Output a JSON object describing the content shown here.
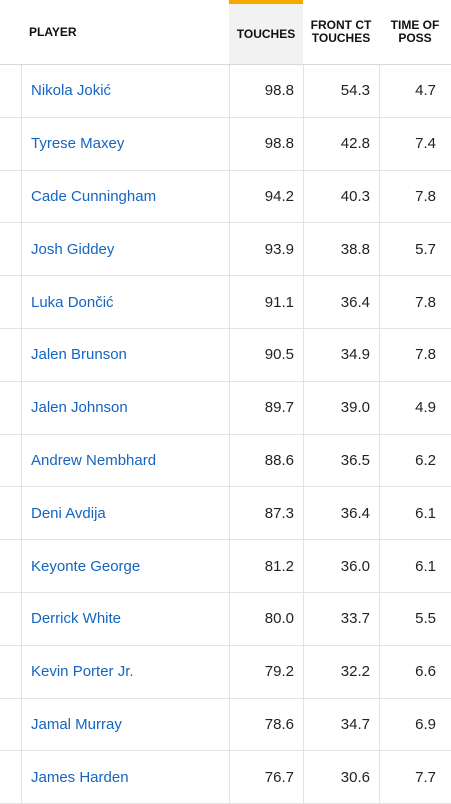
{
  "columns": {
    "player": "PLAYER",
    "touches": "TOUCHES",
    "front_ct_touches": "FRONT CT TOUCHES",
    "time_of_poss": "TIME OF POSS"
  },
  "rows": [
    {
      "player": "Nikola Jokić",
      "touches": "98.8",
      "front": "54.3",
      "time": "4.7"
    },
    {
      "player": "Tyrese Maxey",
      "touches": "98.8",
      "front": "42.8",
      "time": "7.4"
    },
    {
      "player": "Cade Cunningham",
      "touches": "94.2",
      "front": "40.3",
      "time": "7.8"
    },
    {
      "player": "Josh Giddey",
      "touches": "93.9",
      "front": "38.8",
      "time": "5.7"
    },
    {
      "player": "Luka Dončić",
      "touches": "91.1",
      "front": "36.4",
      "time": "7.8"
    },
    {
      "player": "Jalen Brunson",
      "touches": "90.5",
      "front": "34.9",
      "time": "7.8"
    },
    {
      "player": "Jalen Johnson",
      "touches": "89.7",
      "front": "39.0",
      "time": "4.9"
    },
    {
      "player": "Andrew Nembhard",
      "touches": "88.6",
      "front": "36.5",
      "time": "6.2"
    },
    {
      "player": "Deni Avdija",
      "touches": "87.3",
      "front": "36.4",
      "time": "6.1"
    },
    {
      "player": "Keyonte George",
      "touches": "81.2",
      "front": "36.0",
      "time": "6.1"
    },
    {
      "player": "Derrick White",
      "touches": "80.0",
      "front": "33.7",
      "time": "5.5"
    },
    {
      "player": "Kevin Porter Jr.",
      "touches": "79.2",
      "front": "32.2",
      "time": "6.6"
    },
    {
      "player": "Jamal Murray",
      "touches": "78.6",
      "front": "34.7",
      "time": "6.9"
    },
    {
      "player": "James Harden",
      "touches": "76.7",
      "front": "30.6",
      "time": "7.7"
    }
  ],
  "colors": {
    "link": "#1565c0",
    "sorted_column_accent": "#f5a800",
    "sorted_column_bg": "#f2f2f2"
  }
}
